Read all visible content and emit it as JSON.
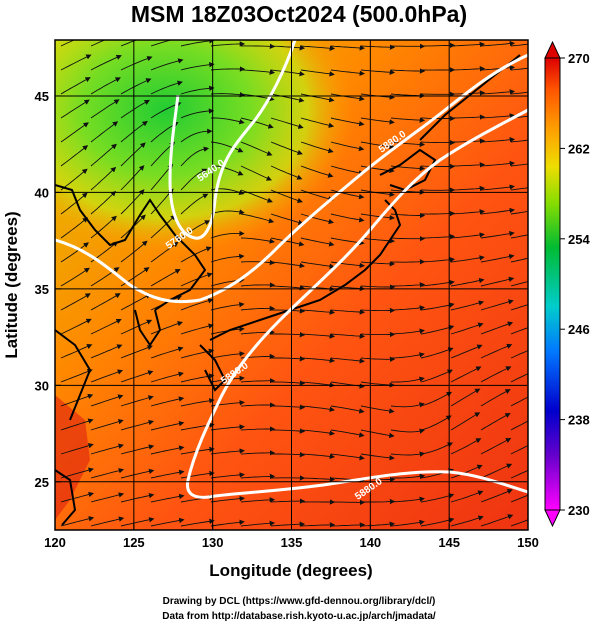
{
  "figure": {
    "title": "MSM 18Z03Oct2024 (500.0hPa)",
    "xlabel": "Longitude (degrees)",
    "ylabel": "Latitude  (degrees)",
    "credit_line1": "Drawing by DCL (https://www.gfd-dennou.org/library/dcl/)",
    "credit_line2": "Data from http://database.rish.kyoto-u.ac.jp/arch/jmadata/"
  },
  "chart_data": {
    "type": "heatmap",
    "title": "MSM 18Z03Oct2024 (500.0hPa)",
    "xlabel": "Longitude (degrees)",
    "ylabel": "Latitude  (degrees)",
    "xlim": [
      120,
      150
    ],
    "ylim": [
      22.5,
      47.9
    ],
    "x_ticks": [
      120,
      125,
      130,
      135,
      140,
      145,
      150
    ],
    "y_ticks": [
      25,
      30,
      35,
      40,
      45
    ],
    "grid": true,
    "colorbar": {
      "min": 230,
      "max": 270,
      "ticks": [
        230,
        238,
        246,
        254,
        262,
        270
      ],
      "colors": [
        "#ff00ff",
        "#5500cc",
        "#0000dd",
        "#0088ff",
        "#00cccc",
        "#00bb44",
        "#55dd00",
        "#ddee00",
        "#ffaa00",
        "#ff5500",
        "#dd0000"
      ]
    },
    "contour_labels": [
      {
        "text": "5640.0",
        "lon": 130.0,
        "lat": 41.0
      },
      {
        "text": "5760.0",
        "lon": 128.0,
        "lat": 37.5
      },
      {
        "text": "5880.0",
        "lon": 141.5,
        "lat": 42.5
      },
      {
        "text": "5880.0",
        "lon": 131.5,
        "lat": 30.5
      },
      {
        "text": "5880.0",
        "lon": 140.0,
        "lat": 24.5
      }
    ]
  }
}
